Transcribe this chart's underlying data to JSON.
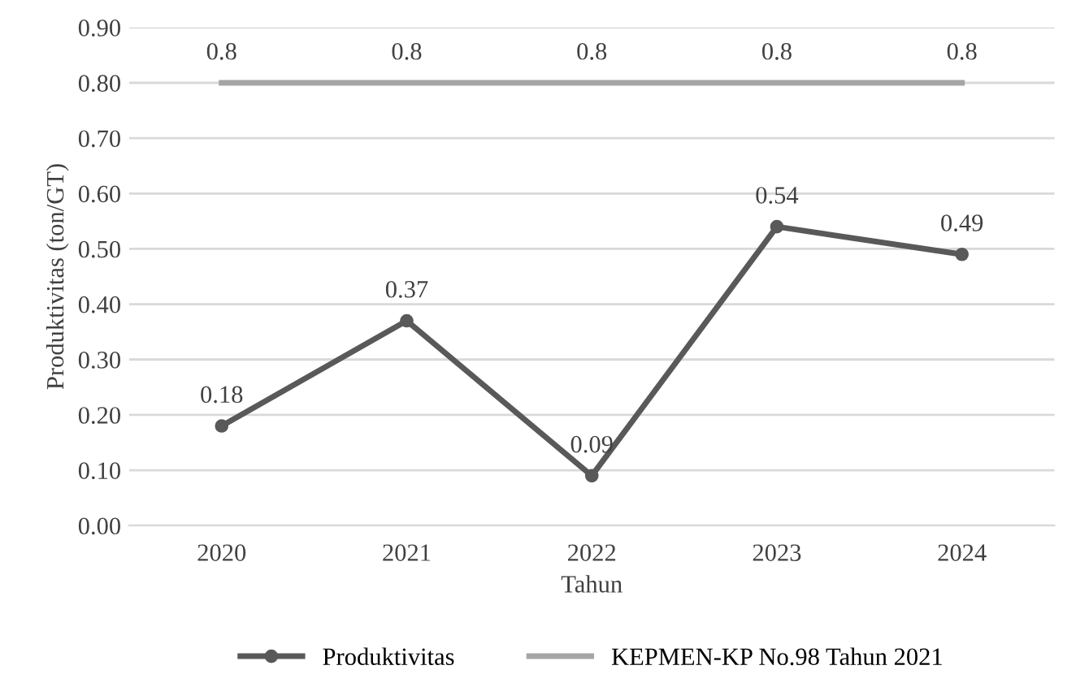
{
  "chart_data": {
    "type": "line",
    "xlabel": "Tahun",
    "ylabel": "Produktivitas (ton/GT)",
    "categories": [
      "2020",
      "2021",
      "2022",
      "2023",
      "2024"
    ],
    "series": [
      {
        "name": "Produktivitas",
        "color": "#595959",
        "marker": "circle",
        "values": [
          0.18,
          0.37,
          0.09,
          0.54,
          0.49
        ]
      },
      {
        "name": "KEPMEN-KP No.98 Tahun 2021",
        "color": "#a5a5a5",
        "marker": "none",
        "values": [
          0.8,
          0.8,
          0.8,
          0.8,
          0.8
        ]
      }
    ],
    "ylim": [
      0,
      0.9
    ],
    "yticks": [
      {
        "value": 0,
        "label": "0.00"
      },
      {
        "value": 0.1,
        "label": "0.10"
      },
      {
        "value": 0.2,
        "label": "0.20"
      },
      {
        "value": 0.3,
        "label": "0.30"
      },
      {
        "value": 0.4,
        "label": "0.40"
      },
      {
        "value": 0.5,
        "label": "0.50"
      },
      {
        "value": 0.6,
        "label": "0.60"
      },
      {
        "value": 0.7,
        "label": "0.70"
      },
      {
        "value": 0.8,
        "label": "0.80"
      },
      {
        "value": 0.9,
        "label": "0.90"
      }
    ],
    "grid": "y",
    "legend": "bottom",
    "data_labels": true,
    "line_style": "solid"
  }
}
